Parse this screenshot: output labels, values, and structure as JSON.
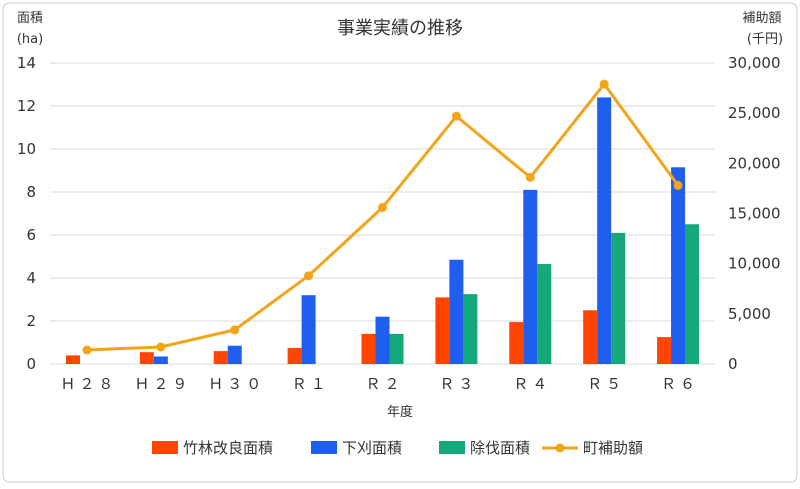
{
  "chart_data": {
    "type": "bar",
    "title": "事業実績の推移",
    "xlabel": "年度",
    "ylabel_left": [
      "面積",
      "(ha)"
    ],
    "ylabel_right": [
      "補助額",
      "(千円)"
    ],
    "categories": [
      "H28",
      "H29",
      "H30",
      "R1",
      "R2",
      "R3",
      "R4",
      "R5",
      "R6"
    ],
    "category_labels": [
      "Ｈ２８",
      "Ｈ２９",
      "Ｈ３０",
      "Ｒ１",
      "Ｒ２",
      "Ｒ３",
      "Ｒ４",
      "Ｒ５",
      "Ｒ６"
    ],
    "ylim_left": [
      0,
      14
    ],
    "yticks_left": [
      "0",
      "2",
      "4",
      "6",
      "8",
      "10",
      "12",
      "14"
    ],
    "ylim_right": [
      0,
      30000
    ],
    "yticks_right": [
      "0",
      "5,000",
      "10,000",
      "15,000",
      "20,000",
      "25,000",
      "30,000"
    ],
    "grid": true,
    "legend_position": "bottom",
    "series": [
      {
        "name": "竹林改良面積",
        "type": "bar",
        "axis": "left",
        "color": "#FF4500",
        "values": [
          0.4,
          0.55,
          0.6,
          0.75,
          1.4,
          3.1,
          1.95,
          2.5,
          1.25
        ]
      },
      {
        "name": "下刈面積",
        "type": "bar",
        "axis": "left",
        "color": "#1F5FF0",
        "values": [
          0,
          0.35,
          0.85,
          3.2,
          2.2,
          4.85,
          8.1,
          12.4,
          9.15
        ]
      },
      {
        "name": "除伐面積",
        "type": "bar",
        "axis": "left",
        "color": "#14A87A",
        "values": [
          0,
          0,
          0,
          0,
          1.4,
          3.25,
          4.65,
          6.1,
          6.5
        ]
      },
      {
        "name": "町補助額",
        "type": "line",
        "axis": "right",
        "color": "#F2A518",
        "values": [
          1400,
          1700,
          3400,
          8800,
          15600,
          24700,
          18600,
          27900,
          17800
        ]
      }
    ]
  }
}
